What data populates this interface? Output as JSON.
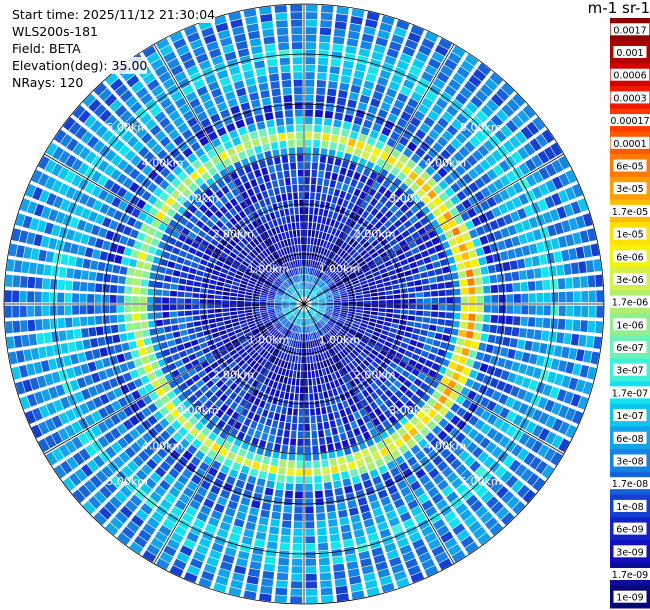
{
  "header": {
    "start_time": "Start time: 2025/11/12 21:30:04",
    "instrument": "WLS200s-181",
    "field": "Field: BETA",
    "elevation": "Elevation(deg): 35.00",
    "nrays": "NRays: 120"
  },
  "chart_data": {
    "type": "heatmap",
    "projection": "polar (PPI scan)",
    "field": "BETA",
    "nrays": 120,
    "elevation_deg": 35.0,
    "range_km_max": 6.0,
    "range_rings_km": [
      1.0,
      2.0,
      3.0,
      4.0,
      5.0
    ],
    "range_labels": [
      "1.00km",
      "2.00km",
      "3.00km",
      "4.00km",
      "5.00km"
    ],
    "azimuth_lines_deg": [
      0,
      30,
      60,
      90,
      120,
      150,
      180,
      210,
      240,
      270,
      300,
      330
    ],
    "colorbar": {
      "title": "m-1 sr-1",
      "scale": "log",
      "labels": [
        "0.0017",
        "0.001",
        "0.0006",
        "0.0003",
        "0.00017",
        "0.0001",
        "6e-05",
        "3e-05",
        "1.7e-05",
        "1e-05",
        "6e-06",
        "3e-06",
        "1.7e-06",
        "1e-06",
        "6e-07",
        "3e-07",
        "1.7e-07",
        "1e-07",
        "6e-08",
        "3e-08",
        "1.7e-08",
        "1e-08",
        "6e-09",
        "3e-09",
        "1.7e-09",
        "1e-09"
      ],
      "colors": [
        "#8c0000",
        "#b00000",
        "#d40000",
        "#f01800",
        "#ff3a00",
        "#ff5a00",
        "#ff7a00",
        "#ff9c00",
        "#ffbd00",
        "#ffe000",
        "#f2f20a",
        "#d4f04a",
        "#b0ee70",
        "#90f08e",
        "#6ef2b4",
        "#40f0d8",
        "#14e4f0",
        "#0cc6f0",
        "#12a4ea",
        "#1682e2",
        "#1660d8",
        "#1440d0",
        "#1222c8",
        "#1010c0",
        "#0c0c9c",
        "#080878"
      ]
    },
    "profile": [
      {
        "range_km": 0.3,
        "beta": 1e-07
      },
      {
        "range_km": 0.8,
        "beta": 3e-09
      },
      {
        "range_km": 1.5,
        "beta": 3e-09
      },
      {
        "range_km": 2.5,
        "beta": 1e-08
      },
      {
        "range_km": 3.0,
        "beta": 1e-08
      },
      {
        "range_km": 3.33,
        "beta": 1e-05
      },
      {
        "range_km": 3.8,
        "beta": 1e-08
      },
      {
        "range_km": 4.4,
        "beta": 3e-08
      },
      {
        "range_km": 5.0,
        "beta": 1e-07
      },
      {
        "range_km": 5.5,
        "beta": 3e-08
      }
    ]
  }
}
